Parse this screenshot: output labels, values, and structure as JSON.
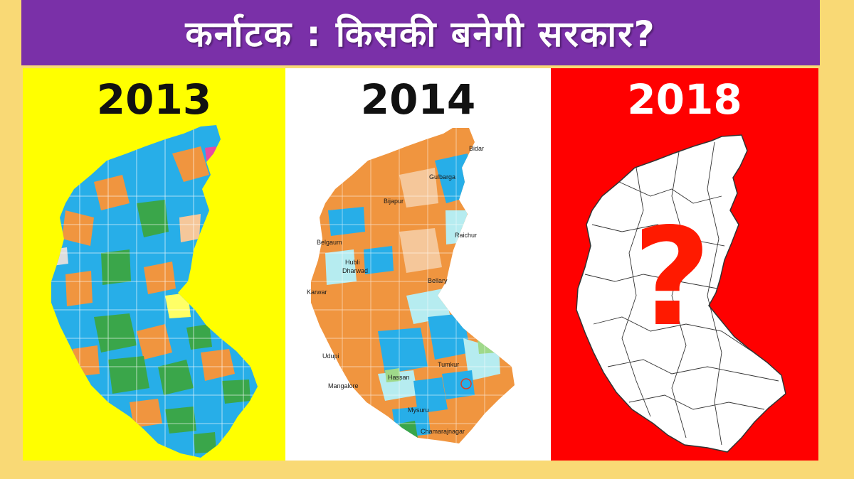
{
  "header": {
    "title": "कर्नाटक : किसकी बनेगी सरकार?"
  },
  "panels": [
    {
      "year": "2013",
      "background": "#ffff00"
    },
    {
      "year": "2014",
      "background": "#ffffff"
    },
    {
      "year": "2018",
      "background": "#ff0000",
      "symbol": "?"
    }
  ],
  "map_2014_labels": {
    "bidar": "Bidar",
    "gulbarga": "Gulbarga",
    "bijapur": "Bijapur",
    "raichur": "Raichur",
    "belgaum": "Belgaum",
    "hubli": "Hubli",
    "dharwad": "Dharwad",
    "karwar": "Karwar",
    "bellary": "Bellary",
    "udupi": "Udupi",
    "tumkur": "Tumkur",
    "hassan": "Hassan",
    "mangalore": "Mangalore",
    "mysuru": "Mysuru",
    "chamarajnagar": "Chamarajnagar"
  },
  "colors": {
    "banner": "#7a30a8",
    "frame": "#f9d975",
    "party_blue": "#27aee8",
    "party_orange": "#f0953f",
    "party_green": "#3aa64a",
    "light_orange": "#f5c79a",
    "light_cyan": "#b6ecf0",
    "question": "#ff1a00"
  }
}
